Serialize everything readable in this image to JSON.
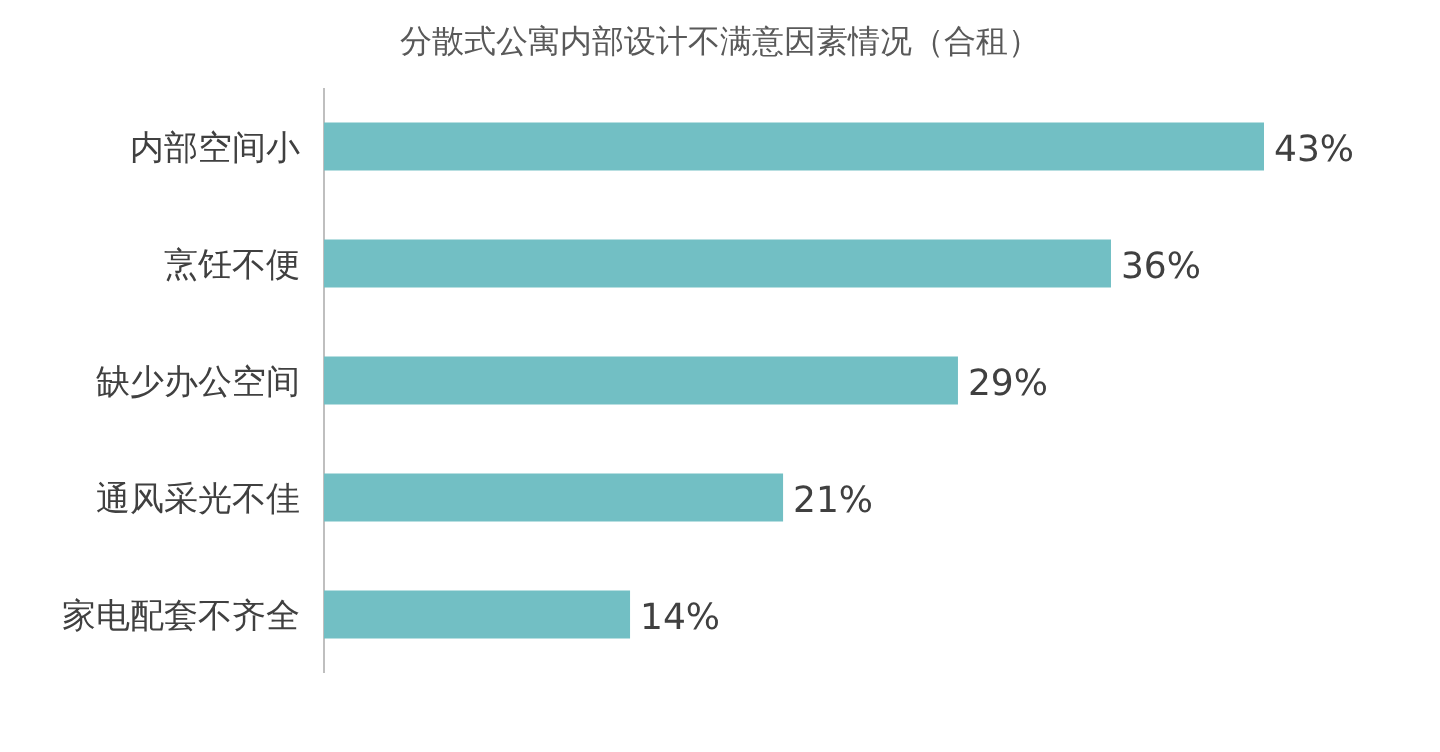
{
  "chart_data": {
    "type": "bar",
    "orientation": "horizontal",
    "title": "分散式公寓内部设计不满意因素情况（合租）",
    "categories": [
      "内部空间小",
      "烹饪不便",
      "缺少办公空间",
      "通风采光不佳",
      "家电配套不齐全"
    ],
    "values": [
      43,
      36,
      29,
      21,
      14
    ],
    "color": "#72bfc4",
    "value_labels": [
      "43%",
      "36%",
      "29%",
      "21%",
      "14%"
    ]
  }
}
